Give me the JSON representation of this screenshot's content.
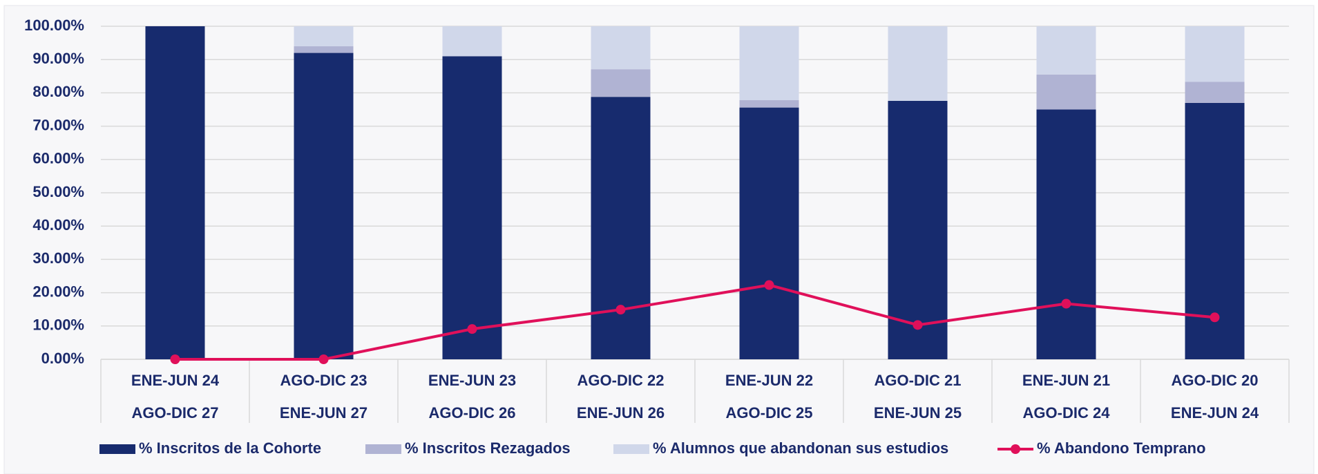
{
  "chart_data": {
    "type": "bar",
    "stacked": true,
    "categories": [
      [
        "ENE-JUN 24",
        "AGO-DIC 27"
      ],
      [
        "AGO-DIC 23",
        "ENE-JUN 27"
      ],
      [
        "ENE-JUN 23",
        "AGO-DIC 26"
      ],
      [
        "AGO-DIC 22",
        "ENE-JUN 26"
      ],
      [
        "ENE-JUN 22",
        "AGO-DIC 25"
      ],
      [
        "AGO-DIC 21",
        "ENE-JUN 25"
      ],
      [
        "ENE-JUN 21",
        "AGO-DIC 24"
      ],
      [
        "AGO-DIC 20",
        "ENE-JUN 24"
      ]
    ],
    "series": [
      {
        "name": "% Inscritos de la Cohorte",
        "type": "bar",
        "color": "#172b6e",
        "values": [
          100,
          92,
          91,
          78.8,
          75.6,
          77.6,
          75,
          77
        ]
      },
      {
        "name": "% Inscritos Rezagados",
        "type": "bar",
        "color": "#b0b3d3",
        "values": [
          0,
          2,
          0,
          8.3,
          2.2,
          0,
          10.5,
          6.3
        ]
      },
      {
        "name": "% Alumnos que abandonan sus estudios",
        "type": "bar",
        "color": "#d0d7ea",
        "values": [
          0,
          6,
          9,
          12.9,
          22.2,
          22.4,
          14.5,
          16.7
        ]
      },
      {
        "name": "% Abandono Temprano",
        "type": "line",
        "color": "#e0105a",
        "values": [
          0,
          0,
          9.1,
          14.9,
          22.3,
          10.3,
          16.7,
          12.6
        ]
      }
    ],
    "ylim": [
      0,
      100
    ],
    "yticks": [
      {
        "value": 0,
        "label": "0.00%"
      },
      {
        "value": 10,
        "label": "10.00%"
      },
      {
        "value": 20,
        "label": "20.00%"
      },
      {
        "value": 30,
        "label": "30.00%"
      },
      {
        "value": 40,
        "label": "40.00%"
      },
      {
        "value": 50,
        "label": "50.00%"
      },
      {
        "value": 60,
        "label": "60.00%"
      },
      {
        "value": 70,
        "label": "70.00%"
      },
      {
        "value": 80,
        "label": "80.00%"
      },
      {
        "value": 90,
        "label": "90.00%"
      },
      {
        "value": 100,
        "label": "100.00%"
      }
    ],
    "grid": true,
    "legend": "bottom"
  }
}
